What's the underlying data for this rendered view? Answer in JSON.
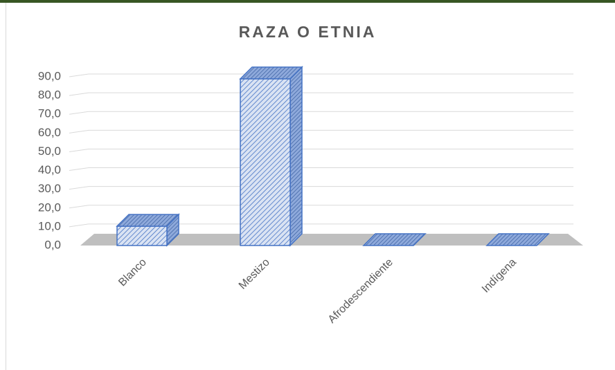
{
  "chart_data": {
    "type": "bar3d",
    "title": "RAZA O ETNIA",
    "categories": [
      "Blanco",
      "Mestizo",
      "Afrodescendiente",
      "Indígena"
    ],
    "values": [
      10.3,
      88.9,
      0,
      0
    ],
    "color": "#4472c4",
    "ylim": [
      0,
      90
    ],
    "yticks": [
      {
        "value": 0,
        "label": "0,0"
      },
      {
        "value": 10,
        "label": "10,0"
      },
      {
        "value": 20,
        "label": "20,0"
      },
      {
        "value": 30,
        "label": "30,0"
      },
      {
        "value": 40,
        "label": "40,0"
      },
      {
        "value": 50,
        "label": "50,0"
      },
      {
        "value": 60,
        "label": "60,0"
      },
      {
        "value": 70,
        "label": "70,0"
      },
      {
        "value": 80,
        "label": "80,0"
      },
      {
        "value": 90,
        "label": "90,0"
      }
    ],
    "grid": true
  }
}
